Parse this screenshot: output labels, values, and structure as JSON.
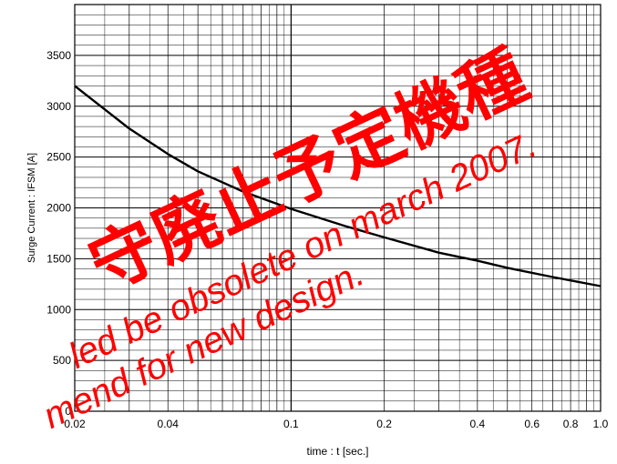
{
  "chart_data": {
    "type": "line",
    "x_scale": "log",
    "xlim": [
      0.02,
      1.0
    ],
    "ylim": [
      0,
      4000
    ],
    "grid": true,
    "xlabel": "time : t [sec.]",
    "ylabel": "Surge Current :   IFSM [A]",
    "x_ticks": [
      {
        "value": 0.02,
        "label": "0.02"
      },
      {
        "value": 0.04,
        "label": "0.04"
      },
      {
        "value": 0.1,
        "label": "0.1"
      },
      {
        "value": 0.2,
        "label": "0.2"
      },
      {
        "value": 0.4,
        "label": "0.4"
      },
      {
        "value": 0.6,
        "label": "0.6"
      },
      {
        "value": 0.8,
        "label": "0.8"
      },
      {
        "value": 1.0,
        "label": "1.0"
      }
    ],
    "y_ticks": [
      {
        "value": 0,
        "label": "0"
      },
      {
        "value": 500,
        "label": "500"
      },
      {
        "value": 1000,
        "label": "1000"
      },
      {
        "value": 1500,
        "label": "1500"
      },
      {
        "value": 2000,
        "label": "2000"
      },
      {
        "value": 2500,
        "label": "2500"
      },
      {
        "value": 3000,
        "label": "3000"
      },
      {
        "value": 3500,
        "label": "3500"
      }
    ],
    "series": [
      {
        "color": "#000000",
        "x": [
          0.02,
          0.03,
          0.04,
          0.05,
          0.07,
          0.1,
          0.15,
          0.2,
          0.3,
          0.4,
          0.5,
          0.7,
          1.0
        ],
        "y": [
          3200,
          2780,
          2530,
          2360,
          2160,
          1990,
          1820,
          1710,
          1560,
          1480,
          1410,
          1320,
          1230
        ]
      }
    ]
  },
  "watermark": {
    "line1": "守廃止予定機種",
    "line2": "led be obsolete on march 2007.",
    "line3": "mend for new design.",
    "color": "#ff0000"
  }
}
